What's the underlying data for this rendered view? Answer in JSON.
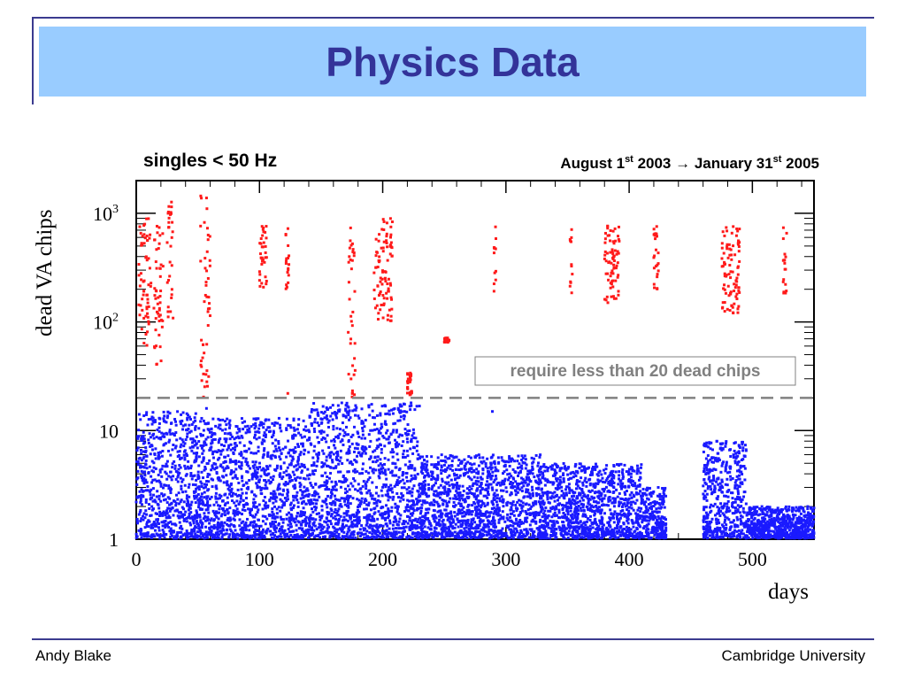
{
  "slide": {
    "title": "Physics Data",
    "footer_left": "Andy Blake",
    "footer_right": "Cambridge University"
  },
  "colors": {
    "title_bg": "#99ccff",
    "title_text": "#333399",
    "frame": "#3b3b8f",
    "good_runs": "#1a1aff",
    "bad_runs": "#ff1a1a",
    "cut_line": "#808080"
  },
  "chart_data": {
    "type": "scatter",
    "title": "singles < 50 Hz",
    "subtitle": "August 1st 2003 → January 31st 2005",
    "xlabel": "days",
    "ylabel": "dead VA chips",
    "xlim": [
      0,
      550
    ],
    "ylim": [
      1,
      2000
    ],
    "log_y": true,
    "x_ticks": [
      0,
      100,
      200,
      300,
      400,
      500
    ],
    "x_tick_labels": [
      "0",
      "100",
      "200",
      "300",
      "400",
      "500"
    ],
    "y_ticks": [
      1,
      10,
      100,
      1000
    ],
    "y_tick_labels": [
      "1",
      "10",
      "10^2",
      "10^3"
    ],
    "grid": false,
    "legend": "none",
    "annotation": "require less than 20 dead chips",
    "threshold": 20,
    "series": [
      {
        "color": "#ff1a1a",
        "clusters": [
          {
            "x": [
              2,
              12
            ],
            "y": [
              60,
              900
            ]
          },
          {
            "x": [
              14,
              22
            ],
            "y": [
              40,
              800
            ]
          },
          {
            "x": [
              25,
              30
            ],
            "y": [
              100,
              1300
            ]
          },
          {
            "x": [
              52,
              60
            ],
            "y": [
              20,
              1500
            ]
          },
          {
            "x": [
              100,
              106
            ],
            "y": [
              200,
              800
            ]
          },
          {
            "x": [
              121,
              124
            ],
            "y": [
              200,
              800
            ]
          },
          {
            "x": [
              172,
              178
            ],
            "y": [
              20,
              800
            ]
          },
          {
            "x": [
              193,
              208
            ],
            "y": [
              100,
              900
            ]
          },
          {
            "x": [
              220,
              224
            ],
            "y": [
              21,
              35
            ]
          },
          {
            "x": [
              250,
              254
            ],
            "y": [
              65,
              72
            ]
          },
          {
            "x": [
              290,
              292
            ],
            "y": [
              180,
              800
            ]
          },
          {
            "x": [
              352,
              354
            ],
            "y": [
              180,
              800
            ]
          },
          {
            "x": [
              380,
              392
            ],
            "y": [
              150,
              800
            ]
          },
          {
            "x": [
              420,
              424
            ],
            "y": [
              180,
              800
            ]
          },
          {
            "x": [
              475,
              490
            ],
            "y": [
              120,
              800
            ]
          },
          {
            "x": [
              525,
              528
            ],
            "y": [
              180,
              800
            ]
          }
        ],
        "singles": [
          [
            123,
            22
          ],
          [
            223,
            32
          ]
        ]
      },
      {
        "color": "#1a1aff",
        "clusters": [
          {
            "x": [
              0,
              50
            ],
            "y": [
              1,
              15
            ]
          },
          {
            "x": [
              50,
              140
            ],
            "y": [
              1,
              13
            ]
          },
          {
            "x": [
              140,
              230
            ],
            "y": [
              1,
              18
            ]
          },
          {
            "x": [
              230,
              330
            ],
            "y": [
              1,
              6
            ]
          },
          {
            "x": [
              330,
              410
            ],
            "y": [
              1,
              5
            ]
          },
          {
            "x": [
              410,
              430
            ],
            "y": [
              1,
              3
            ]
          },
          {
            "x": [
              460,
              495
            ],
            "y": [
              1,
              8
            ]
          },
          {
            "x": [
              495,
              530
            ],
            "y": [
              1,
              2
            ]
          },
          {
            "x": [
              530,
              550
            ],
            "y": [
              1,
              2
            ]
          }
        ],
        "singles": [
          [
            289,
            15
          ],
          [
            57,
            16
          ],
          [
            178,
            17
          ],
          [
            223,
            18
          ]
        ]
      }
    ]
  }
}
